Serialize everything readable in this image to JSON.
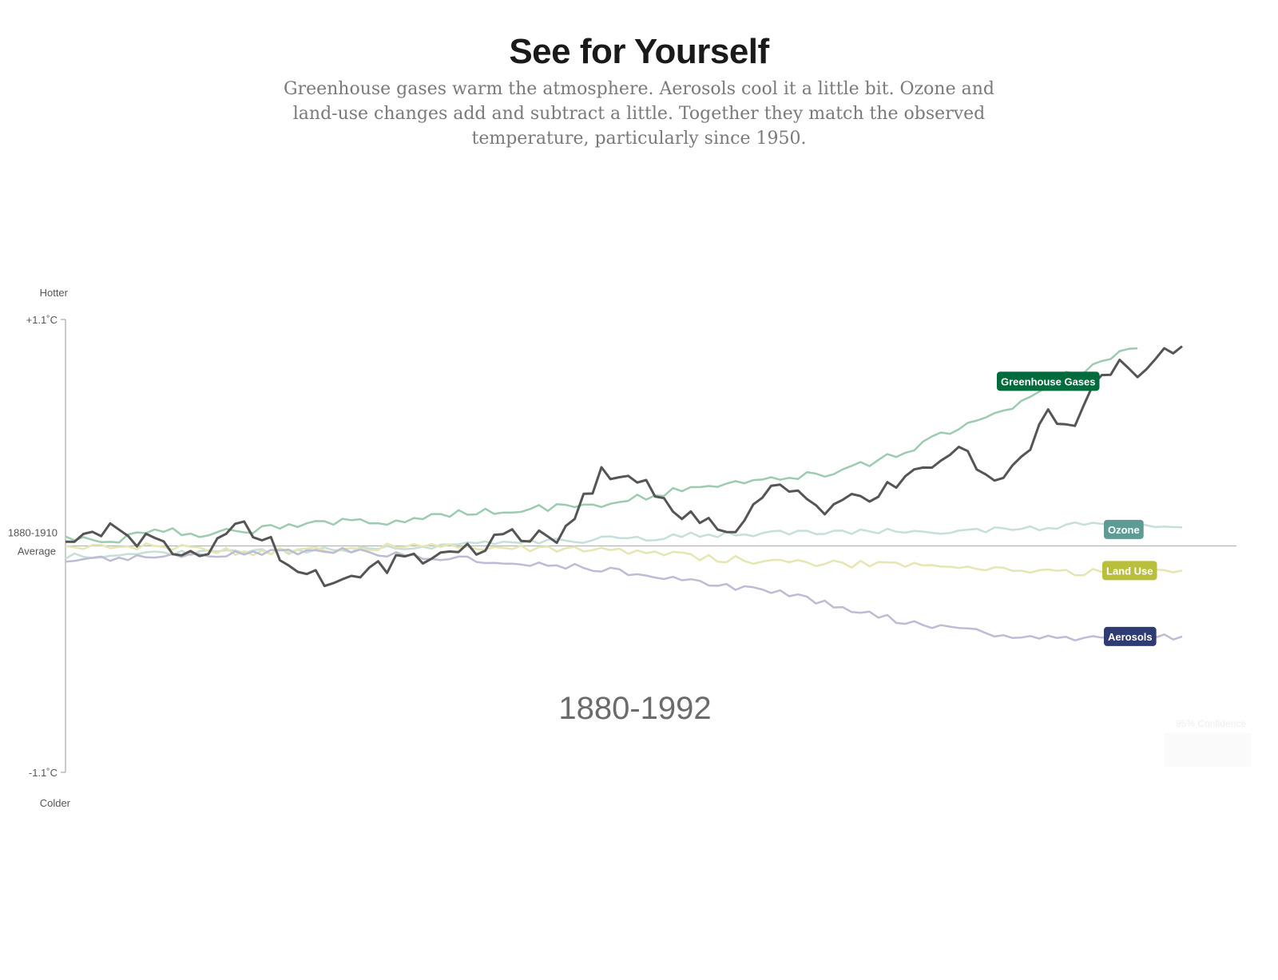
{
  "header": {
    "title": "See for Yourself",
    "subtitle": "Greenhouse gases warm the atmosphere. Aerosols cool it a little bit. Ozone and land-use changes add and subtract a little. Together they match the observed temperature, particularly since 1950."
  },
  "period_label": "1880-1992",
  "confidence_label": "95% Confidence",
  "chart_data": {
    "type": "line",
    "title": "See for Yourself",
    "x_range": [
      1880,
      2005
    ],
    "ylim": [
      -1.1,
      1.1
    ],
    "y_axis": {
      "top_label": "Hotter",
      "bottom_label": "Colder",
      "top_tick": "+1.1˚C",
      "bottom_tick": "-1.1˚C",
      "baseline_label_line1": "1880-1910",
      "baseline_label_line2": "Average"
    },
    "series": [
      {
        "name": "Greenhouse Gases",
        "color": "#006b3c",
        "line_color": "#9ccbb0",
        "label_at_y": 0.8,
        "points": [
          [
            1880,
            0.05
          ],
          [
            1885,
            0.02
          ],
          [
            1890,
            0.08
          ],
          [
            1895,
            0.06
          ],
          [
            1900,
            0.07
          ],
          [
            1905,
            0.1
          ],
          [
            1910,
            0.12
          ],
          [
            1915,
            0.11
          ],
          [
            1920,
            0.14
          ],
          [
            1925,
            0.16
          ],
          [
            1930,
            0.17
          ],
          [
            1935,
            0.19
          ],
          [
            1940,
            0.2
          ],
          [
            1945,
            0.24
          ],
          [
            1950,
            0.28
          ],
          [
            1955,
            0.3
          ],
          [
            1960,
            0.33
          ],
          [
            1965,
            0.35
          ],
          [
            1970,
            0.4
          ],
          [
            1975,
            0.48
          ],
          [
            1980,
            0.58
          ],
          [
            1985,
            0.66
          ],
          [
            1990,
            0.77
          ],
          [
            1992,
            0.83
          ],
          [
            1994,
            0.85
          ],
          [
            1996,
            0.89
          ],
          [
            1998,
            0.93
          ],
          [
            2000,
            0.96
          ]
        ]
      },
      {
        "name": "Ozone",
        "color": "#5e9b95",
        "line_color": "#c6dfd8",
        "label_at_y": 0.08,
        "points": [
          [
            1880,
            -0.05
          ],
          [
            1890,
            -0.04
          ],
          [
            1900,
            -0.03
          ],
          [
            1910,
            -0.02
          ],
          [
            1920,
            0.0
          ],
          [
            1930,
            0.01
          ],
          [
            1940,
            0.03
          ],
          [
            1950,
            0.05
          ],
          [
            1960,
            0.06
          ],
          [
            1970,
            0.07
          ],
          [
            1980,
            0.07
          ],
          [
            1990,
            0.09
          ],
          [
            1992,
            0.1
          ],
          [
            2000,
            0.1
          ],
          [
            2005,
            0.09
          ]
        ]
      },
      {
        "name": "Land Use",
        "color": "#b9bf3b",
        "line_color": "#e5e6b2",
        "label_at_y": -0.12,
        "points": [
          [
            1880,
            -0.01
          ],
          [
            1890,
            0.0
          ],
          [
            1900,
            -0.03
          ],
          [
            1910,
            -0.02
          ],
          [
            1920,
            0.01
          ],
          [
            1930,
            -0.01
          ],
          [
            1940,
            -0.02
          ],
          [
            1950,
            -0.05
          ],
          [
            1960,
            -0.08
          ],
          [
            1970,
            -0.09
          ],
          [
            1980,
            -0.11
          ],
          [
            1990,
            -0.12
          ],
          [
            1992,
            -0.13
          ],
          [
            2000,
            -0.12
          ],
          [
            2005,
            -0.12
          ]
        ]
      },
      {
        "name": "Aerosols",
        "color": "#2f3b73",
        "line_color": "#bdbcd4",
        "label_at_y": -0.44,
        "points": [
          [
            1880,
            -0.07
          ],
          [
            1890,
            -0.05
          ],
          [
            1900,
            -0.04
          ],
          [
            1910,
            -0.02
          ],
          [
            1920,
            -0.05
          ],
          [
            1930,
            -0.08
          ],
          [
            1940,
            -0.11
          ],
          [
            1950,
            -0.17
          ],
          [
            1955,
            -0.2
          ],
          [
            1960,
            -0.23
          ],
          [
            1965,
            -0.28
          ],
          [
            1970,
            -0.33
          ],
          [
            1975,
            -0.38
          ],
          [
            1980,
            -0.41
          ],
          [
            1985,
            -0.43
          ],
          [
            1990,
            -0.44
          ],
          [
            1992,
            -0.45
          ],
          [
            2000,
            -0.45
          ],
          [
            2005,
            -0.44
          ]
        ]
      },
      {
        "name": "Observed",
        "color": "#555555",
        "points": [
          [
            1880,
            0.05
          ],
          [
            1885,
            0.1
          ],
          [
            1890,
            0.0
          ],
          [
            1895,
            -0.05
          ],
          [
            1900,
            0.1
          ],
          [
            1905,
            -0.07
          ],
          [
            1910,
            -0.17
          ],
          [
            1915,
            -0.1
          ],
          [
            1920,
            -0.05
          ],
          [
            1925,
            -0.02
          ],
          [
            1930,
            0.08
          ],
          [
            1935,
            0.02
          ],
          [
            1940,
            0.35
          ],
          [
            1945,
            0.28
          ],
          [
            1950,
            0.14
          ],
          [
            1955,
            0.08
          ],
          [
            1960,
            0.3
          ],
          [
            1965,
            0.15
          ],
          [
            1970,
            0.25
          ],
          [
            1975,
            0.35
          ],
          [
            1980,
            0.45
          ],
          [
            1985,
            0.3
          ],
          [
            1990,
            0.65
          ],
          [
            1992,
            0.55
          ],
          [
            1994,
            0.68
          ],
          [
            1996,
            0.82
          ],
          [
            1998,
            0.9
          ],
          [
            2000,
            0.86
          ],
          [
            2005,
            0.97
          ]
        ]
      }
    ]
  }
}
